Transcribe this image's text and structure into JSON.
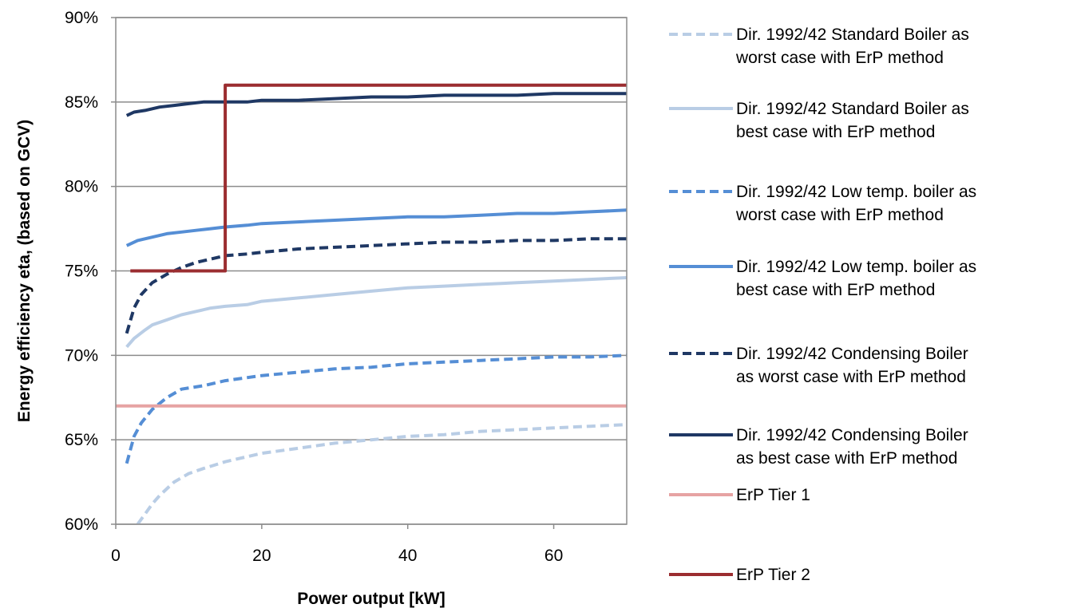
{
  "chart_data": {
    "type": "line",
    "xlabel": "Power output [kW]",
    "ylabel": "Energy efficiency eta, (based on GCV)",
    "xlim": [
      0,
      70
    ],
    "ylim": [
      60,
      90
    ],
    "x_ticks": [
      0,
      20,
      40,
      60
    ],
    "y_ticks": [
      60,
      65,
      70,
      75,
      80,
      85,
      90
    ],
    "y_tick_labels": [
      "60%",
      "65%",
      "70%",
      "75%",
      "80%",
      "85%",
      "90%"
    ],
    "grid": "horizontal",
    "legend_position": "right",
    "series": [
      {
        "name": [
          "Dir. 1992/42 Standard Boiler as",
          "worst case with ErP method"
        ],
        "color": "#b9cde5",
        "style": "dashed",
        "points": [
          [
            3,
            60
          ],
          [
            4,
            60.6
          ],
          [
            5,
            61.2
          ],
          [
            6,
            61.7
          ],
          [
            7,
            62.1
          ],
          [
            8,
            62.5
          ],
          [
            10,
            63.0
          ],
          [
            12,
            63.3
          ],
          [
            15,
            63.7
          ],
          [
            18,
            64.0
          ],
          [
            20,
            64.2
          ],
          [
            25,
            64.5
          ],
          [
            30,
            64.8
          ],
          [
            35,
            65.0
          ],
          [
            40,
            65.2
          ],
          [
            45,
            65.3
          ],
          [
            50,
            65.5
          ],
          [
            55,
            65.6
          ],
          [
            60,
            65.7
          ],
          [
            65,
            65.8
          ],
          [
            70,
            65.9
          ]
        ]
      },
      {
        "name": [
          "Dir. 1992/42 Standard Boiler as",
          "best case with ErP method"
        ],
        "color": "#b9cde5",
        "style": "solid",
        "points": [
          [
            1.5,
            70.5
          ],
          [
            2.5,
            71.0
          ],
          [
            4,
            71.5
          ],
          [
            5,
            71.8
          ],
          [
            7,
            72.1
          ],
          [
            9,
            72.4
          ],
          [
            11,
            72.6
          ],
          [
            13,
            72.8
          ],
          [
            15,
            72.9
          ],
          [
            18,
            73.0
          ],
          [
            20,
            73.2
          ],
          [
            25,
            73.4
          ],
          [
            30,
            73.6
          ],
          [
            35,
            73.8
          ],
          [
            40,
            74.0
          ],
          [
            45,
            74.1
          ],
          [
            50,
            74.2
          ],
          [
            55,
            74.3
          ],
          [
            60,
            74.4
          ],
          [
            65,
            74.5
          ],
          [
            70,
            74.6
          ]
        ]
      },
      {
        "name": [
          "Dir. 1992/42  Low temp. boiler as",
          "worst case with ErP method"
        ],
        "color": "#558ed5",
        "style": "dashed",
        "points": [
          [
            1.5,
            63.6
          ],
          [
            2.5,
            65.2
          ],
          [
            3.5,
            66.0
          ],
          [
            5,
            66.8
          ],
          [
            7,
            67.5
          ],
          [
            9,
            68.0
          ],
          [
            12,
            68.2
          ],
          [
            15,
            68.5
          ],
          [
            20,
            68.8
          ],
          [
            25,
            69.0
          ],
          [
            30,
            69.2
          ],
          [
            35,
            69.3
          ],
          [
            40,
            69.5
          ],
          [
            45,
            69.6
          ],
          [
            50,
            69.7
          ],
          [
            55,
            69.8
          ],
          [
            60,
            69.9
          ],
          [
            65,
            69.9
          ],
          [
            70,
            70.0
          ]
        ]
      },
      {
        "name": [
          "Dir. 1992/42 Low temp. boiler as",
          "best case with ErP method"
        ],
        "color": "#558ed5",
        "style": "solid",
        "points": [
          [
            1.5,
            76.5
          ],
          [
            3,
            76.8
          ],
          [
            5,
            77.0
          ],
          [
            7,
            77.2
          ],
          [
            9,
            77.3
          ],
          [
            11,
            77.4
          ],
          [
            13,
            77.5
          ],
          [
            15,
            77.6
          ],
          [
            18,
            77.7
          ],
          [
            20,
            77.8
          ],
          [
            25,
            77.9
          ],
          [
            30,
            78.0
          ],
          [
            35,
            78.1
          ],
          [
            40,
            78.2
          ],
          [
            45,
            78.2
          ],
          [
            50,
            78.3
          ],
          [
            55,
            78.4
          ],
          [
            60,
            78.4
          ],
          [
            65,
            78.5
          ],
          [
            70,
            78.6
          ]
        ]
      },
      {
        "name": [
          "Dir. 1992/42 Condensing Boiler",
          "as worst case with ErP method"
        ],
        "color": "#1f3864",
        "style": "dashed",
        "points": [
          [
            1.5,
            71.3
          ],
          [
            2.5,
            72.8
          ],
          [
            3.5,
            73.6
          ],
          [
            5,
            74.3
          ],
          [
            7,
            74.8
          ],
          [
            9,
            75.2
          ],
          [
            11,
            75.5
          ],
          [
            13,
            75.7
          ],
          [
            15,
            75.9
          ],
          [
            18,
            76.0
          ],
          [
            20,
            76.1
          ],
          [
            25,
            76.3
          ],
          [
            30,
            76.4
          ],
          [
            35,
            76.5
          ],
          [
            40,
            76.6
          ],
          [
            45,
            76.7
          ],
          [
            50,
            76.7
          ],
          [
            55,
            76.8
          ],
          [
            60,
            76.8
          ],
          [
            65,
            76.9
          ],
          [
            70,
            76.9
          ]
        ]
      },
      {
        "name": [
          "Dir. 1992/42 Condensing Boiler",
          "as best case with ErP method"
        ],
        "color": "#1f3864",
        "style": "solid",
        "points": [
          [
            1.5,
            84.2
          ],
          [
            2.5,
            84.4
          ],
          [
            4,
            84.5
          ],
          [
            6,
            84.7
          ],
          [
            8,
            84.8
          ],
          [
            10,
            84.9
          ],
          [
            12,
            85.0
          ],
          [
            15,
            85.0
          ],
          [
            18,
            85.0
          ],
          [
            20,
            85.1
          ],
          [
            25,
            85.1
          ],
          [
            30,
            85.2
          ],
          [
            35,
            85.3
          ],
          [
            40,
            85.3
          ],
          [
            45,
            85.4
          ],
          [
            50,
            85.4
          ],
          [
            55,
            85.4
          ],
          [
            60,
            85.5
          ],
          [
            65,
            85.5
          ],
          [
            70,
            85.5
          ]
        ]
      },
      {
        "name": [
          "ErP Tier 1"
        ],
        "color": "#e6a3a3",
        "style": "solid",
        "points": [
          [
            0,
            67
          ],
          [
            70,
            67
          ]
        ]
      },
      {
        "name": [
          "ErP Tier 2"
        ],
        "color": "#9b2d30",
        "style": "solid",
        "points": [
          [
            2,
            75
          ],
          [
            15,
            75
          ],
          [
            15,
            86
          ],
          [
            70,
            86
          ]
        ]
      }
    ]
  }
}
